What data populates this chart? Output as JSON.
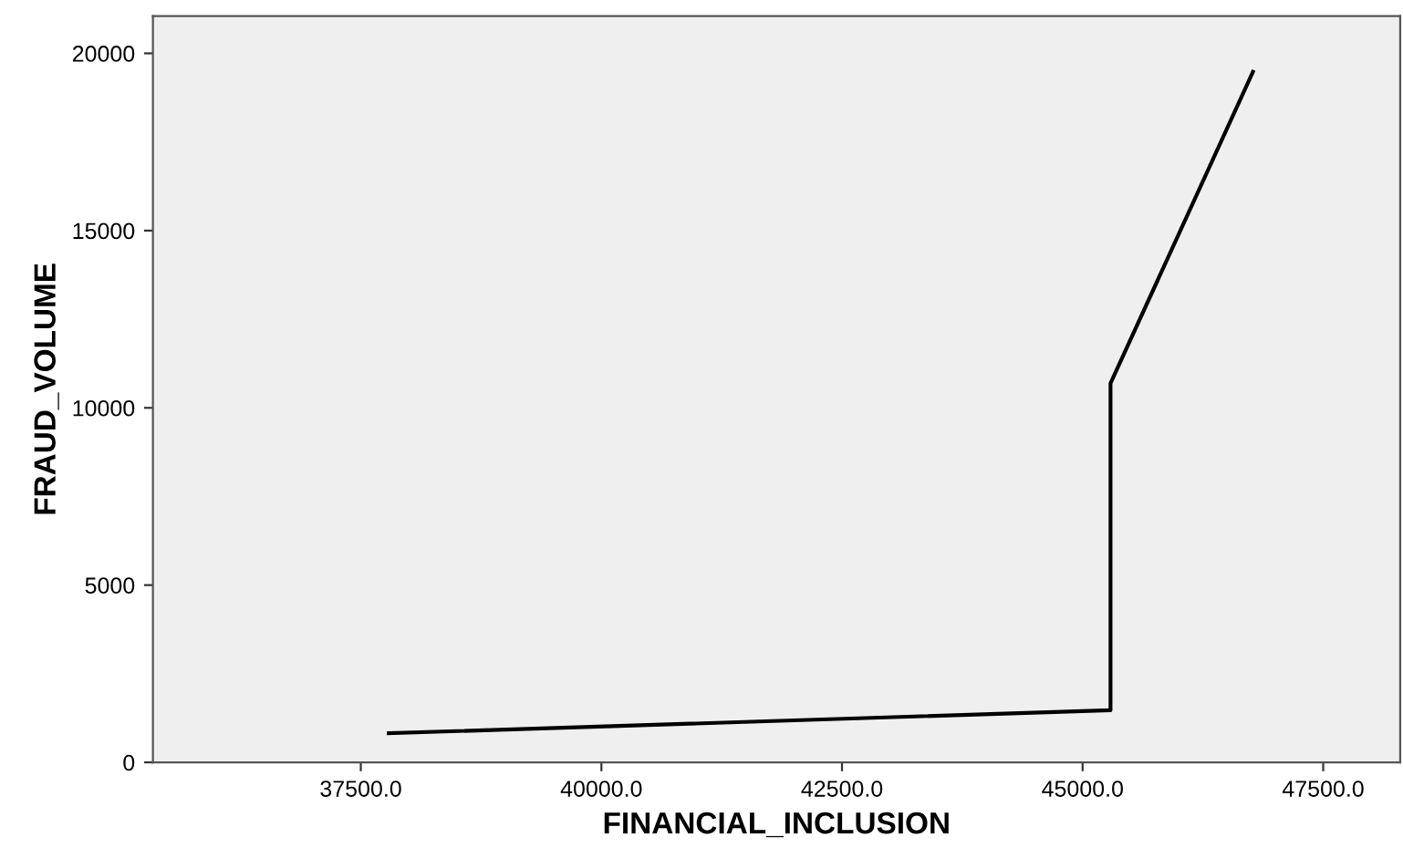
{
  "chart_data": {
    "type": "line",
    "xlabel": "FINANCIAL_INCLUSION",
    "ylabel": "FRAUD_VOLUME",
    "x": [
      37790,
      45290,
      45290,
      46770
    ],
    "values": [
      820,
      1470,
      10690,
      19480
    ],
    "color": "#000000",
    "xlim": [
      35340,
      48300
    ],
    "ylim": [
      0,
      21050
    ],
    "xticks": [
      {
        "value": 37500,
        "label": "37500.0"
      },
      {
        "value": 40000,
        "label": "40000.0"
      },
      {
        "value": 42500,
        "label": "42500.0"
      },
      {
        "value": 45000,
        "label": "45000.0"
      },
      {
        "value": 47500,
        "label": "47500.0"
      }
    ],
    "yticks": [
      0,
      5000,
      10000,
      15000,
      20000
    ],
    "grid": false,
    "marker": "none",
    "line_style": "solid"
  }
}
